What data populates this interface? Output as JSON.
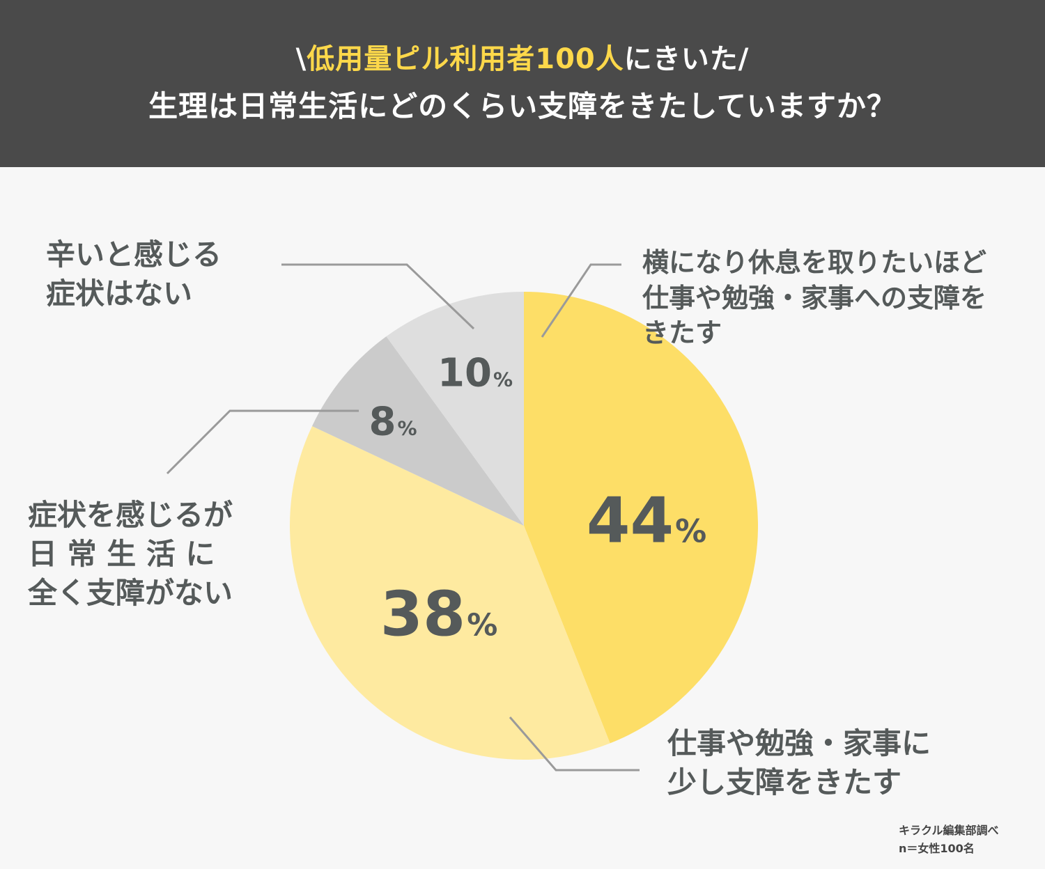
{
  "header": {
    "prefix": "\\",
    "highlight": "低用量ピル利用者100人",
    "suffix": "にきいた/",
    "question": "生理は日常生活にどのくらい支障をきたしていますか？"
  },
  "chart_data": {
    "type": "pie",
    "title": "生理は日常生活にどのくらい支障をきたしていますか？",
    "slices": [
      {
        "label": "横になり休息を取りたいほど仕事や勉強・家事への支障をきたす",
        "value": 44,
        "color": "#fdde67"
      },
      {
        "label": "仕事や勉強・家事に少し支障をきたす",
        "value": 38,
        "color": "#feeaa0"
      },
      {
        "label": "症状を感じるが日常生活に全く支障がない",
        "value": 8,
        "color": "#cbcbcb"
      },
      {
        "label": "辛いと感じる症状はない",
        "value": 10,
        "color": "#dedede"
      }
    ],
    "value_suffix": "%"
  },
  "labels": {
    "severe": "横になり休息を取りたいほど\n仕事や勉強・家事への支障を\nきたす",
    "some": "仕事や勉強・家事に\n少し支障をきたす",
    "no_impact": "症状を感じるが\n日 常 生 活 に\n全く支障がない",
    "no_symptoms": "辛いと感じる\n症状はない"
  },
  "percent": {
    "severe": "44",
    "some": "38",
    "no_impact": "8",
    "no_symptoms": "10",
    "symbol": "%"
  },
  "source": {
    "line1": "キラクル編集部調べ",
    "line2": "n＝女性100名"
  }
}
